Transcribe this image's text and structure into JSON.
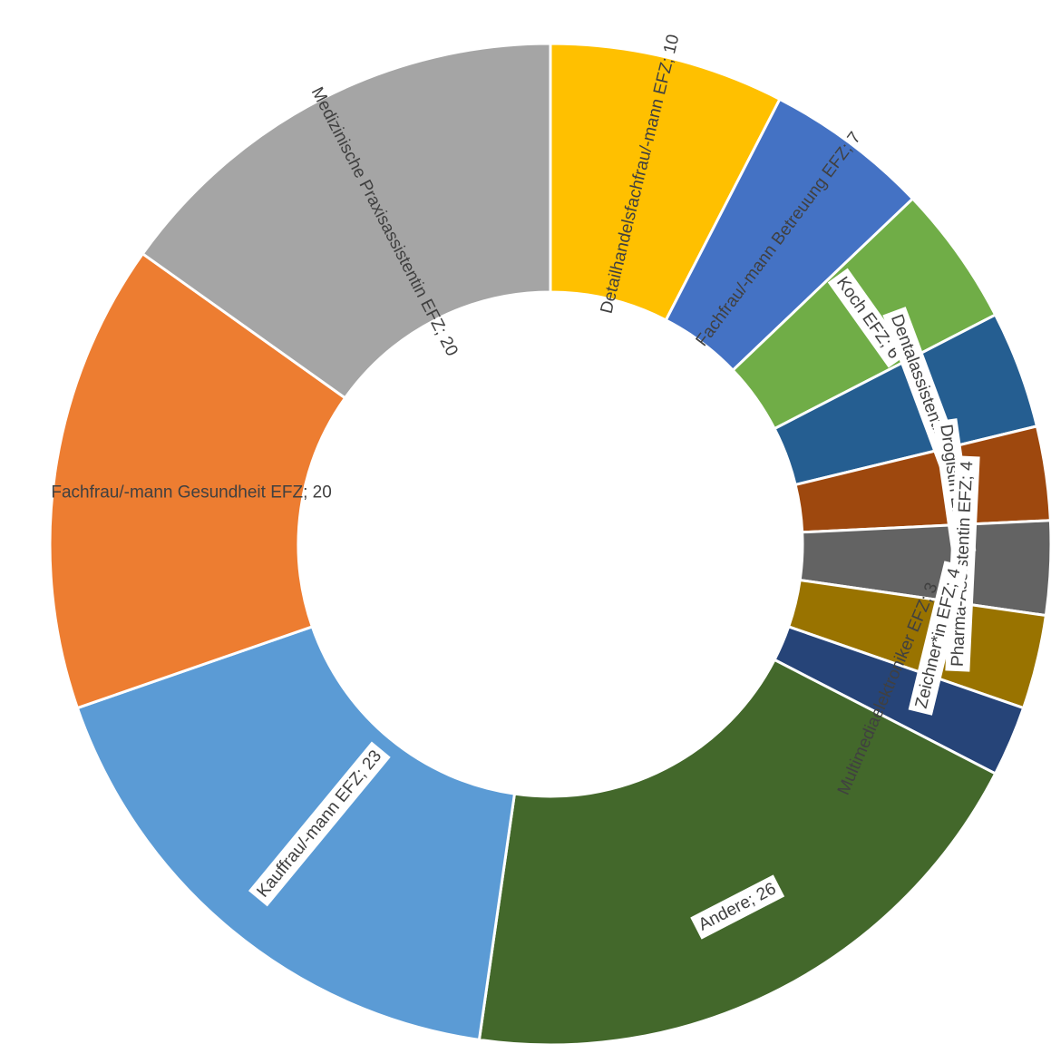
{
  "chart_data": {
    "type": "pie",
    "variant": "donut",
    "title": "",
    "start": "top, clockwise",
    "slices": [
      {
        "label": "Detailhandelsfachfrau/-mann EFZ",
        "value": 10,
        "color": "#FFC000"
      },
      {
        "label": "Fachfrau/-mann Betreuung EFZ",
        "value": 7,
        "color": "#4472C4"
      },
      {
        "label": "Koch EFZ",
        "value": 6,
        "color": "#70AD47"
      },
      {
        "label": "Dentalassistentin EFZ",
        "value": 5,
        "color": "#255E91"
      },
      {
        "label": "Drogistin EFZ",
        "value": 4,
        "color": "#9E480E"
      },
      {
        "label": "Pharma-Assistentin EFZ",
        "value": 4,
        "color": "#636363"
      },
      {
        "label": "Zeichner*in EFZ",
        "value": 4,
        "color": "#997300"
      },
      {
        "label": "Multimediaelektroniker EFZ",
        "value": 3,
        "color": "#264478"
      },
      {
        "label": "Andere",
        "value": 26,
        "color": "#43682B"
      },
      {
        "label": "Kauffrau/-mann EFZ",
        "value": 23,
        "color": "#5B9BD5"
      },
      {
        "label": "Fachfrau/-mann Gesundheit EFZ",
        "value": 20,
        "color": "#ED7D31"
      },
      {
        "label": "Medizinische Praxisassistentin EFZ",
        "value": 20,
        "color": "#A5A5A5"
      }
    ],
    "data_labels": [
      "Detailhandelsfachfrau/-mann EFZ; 10",
      "Fachfrau/-mann Betreuung EFZ; 7",
      "Koch EFZ; 6",
      "Dentalassistentin EFZ; 5",
      "Drogistin EFZ; 4",
      "Pharma-Assistentin EFZ; 4",
      "Zeichner*in EFZ; 4",
      "Multimediaelektroniker EFZ; 3",
      "Andere; 26",
      "Kauffrau/-mann EFZ; 23",
      "Fachfrau/-mann Gesundheit EFZ; 20",
      "Medizinische Praxisassistentin EFZ; 20"
    ]
  }
}
